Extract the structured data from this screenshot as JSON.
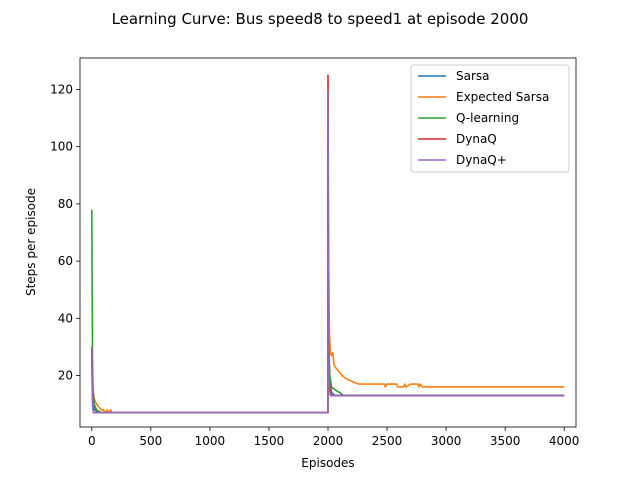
{
  "chart_data": {
    "type": "line",
    "title": "Learning Curve: Bus speed8 to speed1 at episode 2000",
    "xlabel": "Episodes",
    "ylabel": "Steps per episode",
    "xlim": [
      -100,
      4100
    ],
    "ylim": [
      2,
      131
    ],
    "xticks": [
      0,
      500,
      1000,
      1500,
      2000,
      2500,
      3000,
      3500,
      4000
    ],
    "yticks": [
      20,
      40,
      60,
      80,
      100,
      120
    ],
    "legend_position": "top-right",
    "series": [
      {
        "name": "Sarsa",
        "color": "#1f77b4",
        "points": [
          [
            0,
            30
          ],
          [
            5,
            18
          ],
          [
            12,
            10
          ],
          [
            25,
            8
          ],
          [
            60,
            7
          ],
          [
            1999,
            7
          ],
          [
            2000,
            118
          ],
          [
            2003,
            60
          ],
          [
            2008,
            30
          ],
          [
            2015,
            18
          ],
          [
            2030,
            14
          ],
          [
            2060,
            13
          ],
          [
            4000,
            13
          ]
        ]
      },
      {
        "name": "Expected Sarsa",
        "color": "#ff7f0e",
        "points": [
          [
            0,
            30
          ],
          [
            5,
            20
          ],
          [
            10,
            15
          ],
          [
            20,
            12
          ],
          [
            40,
            10
          ],
          [
            60,
            9
          ],
          [
            80,
            8
          ],
          [
            100,
            8
          ],
          [
            110,
            7
          ],
          [
            130,
            8
          ],
          [
            140,
            7
          ],
          [
            160,
            8
          ],
          [
            170,
            7
          ],
          [
            1999,
            7
          ],
          [
            2000,
            118
          ],
          [
            2005,
            60
          ],
          [
            2012,
            35
          ],
          [
            2020,
            28
          ],
          [
            2030,
            27
          ],
          [
            2040,
            28
          ],
          [
            2050,
            24
          ],
          [
            2060,
            23
          ],
          [
            2080,
            22
          ],
          [
            2100,
            21
          ],
          [
            2120,
            20
          ],
          [
            2150,
            19
          ],
          [
            2200,
            18
          ],
          [
            2260,
            17
          ],
          [
            2480,
            17
          ],
          [
            2485,
            16
          ],
          [
            2500,
            17
          ],
          [
            2580,
            17
          ],
          [
            2590,
            16
          ],
          [
            2640,
            16
          ],
          [
            2650,
            17
          ],
          [
            2660,
            16
          ],
          [
            2700,
            17
          ],
          [
            2760,
            17
          ],
          [
            2770,
            16
          ],
          [
            2780,
            17
          ],
          [
            2800,
            16
          ],
          [
            4000,
            16
          ]
        ]
      },
      {
        "name": "Q-learning",
        "color": "#2ca02c",
        "points": [
          [
            0,
            78
          ],
          [
            3,
            50
          ],
          [
            6,
            25
          ],
          [
            10,
            15
          ],
          [
            20,
            10
          ],
          [
            40,
            8
          ],
          [
            80,
            7
          ],
          [
            1999,
            7
          ],
          [
            2000,
            100
          ],
          [
            2003,
            42
          ],
          [
            2008,
            28
          ],
          [
            2015,
            20
          ],
          [
            2030,
            16
          ],
          [
            2060,
            15
          ],
          [
            2100,
            14
          ],
          [
            2130,
            13
          ],
          [
            4000,
            13
          ]
        ]
      },
      {
        "name": "DynaQ",
        "color": "#d62728",
        "points": [
          [
            0,
            30
          ],
          [
            4,
            15
          ],
          [
            8,
            9
          ],
          [
            15,
            7
          ],
          [
            1999,
            7
          ],
          [
            2000,
            125
          ],
          [
            2003,
            70
          ],
          [
            2006,
            35
          ],
          [
            2010,
            18
          ],
          [
            2020,
            14
          ],
          [
            2030,
            13
          ],
          [
            4000,
            13
          ]
        ]
      },
      {
        "name": "DynaQ+",
        "color": "#9467bd",
        "points": [
          [
            0,
            30
          ],
          [
            4,
            15
          ],
          [
            8,
            9
          ],
          [
            15,
            7
          ],
          [
            1999,
            7
          ],
          [
            2000,
            119
          ],
          [
            2003,
            65
          ],
          [
            2006,
            30
          ],
          [
            2010,
            16
          ],
          [
            2020,
            13
          ],
          [
            4000,
            13
          ]
        ]
      }
    ]
  }
}
